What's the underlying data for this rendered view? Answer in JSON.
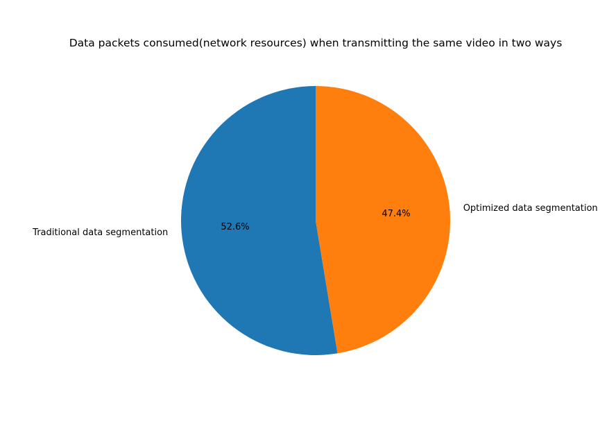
{
  "chart_data": {
    "type": "pie",
    "title": "Data packets consumed(network resources) when transmitting the same video in two ways",
    "start_angle_deg": 90,
    "direction": "counterclockwise",
    "slices": [
      {
        "label": "Traditional data segmentation",
        "value": 52.6,
        "pct_text": "52.6%",
        "color": "#1f77b4"
      },
      {
        "label": "Optimized data segmentation",
        "value": 47.4,
        "pct_text": "47.4%",
        "color": "#ff7f0e"
      }
    ],
    "legend": "none",
    "grid": false
  }
}
